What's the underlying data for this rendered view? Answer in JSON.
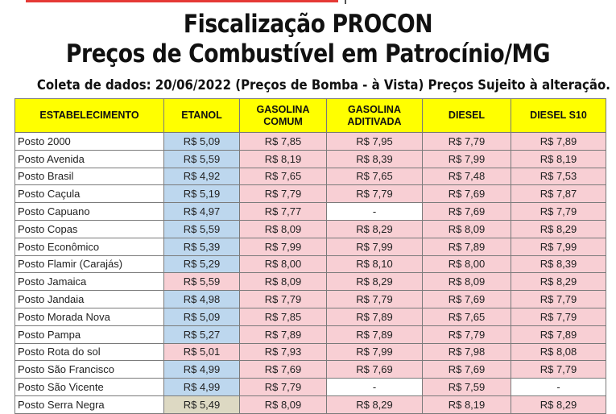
{
  "header": {
    "title_line1": "Fiscalização PROCON",
    "title_line2": "Preços de Combustível em Patrocínio/MG",
    "subtitle": "Coleta de dados: 20/06/2022 (Preços de Bomba - à Vista) Preços Sujeito à alteração."
  },
  "table": {
    "columns": [
      "ESTABELECIMENTO",
      "ETANOL",
      "GASOLINA\nCOMUM",
      "GASOLINA\nADITIVADA",
      "DIESEL",
      "DIESEL S10"
    ],
    "rows": [
      {
        "name": "Posto 2000",
        "etanol": "R$ 5,09",
        "gasolina_comum": "R$ 7,85",
        "gasolina_aditivada": "R$ 7,95",
        "diesel": "R$ 7,79",
        "diesel_s10": "R$ 7,89"
      },
      {
        "name": "Posto Avenida",
        "etanol": "R$ 5,59",
        "gasolina_comum": "R$ 8,19",
        "gasolina_aditivada": "R$ 8,39",
        "diesel": "R$ 7,99",
        "diesel_s10": "R$ 8,19"
      },
      {
        "name": "Posto Brasil",
        "etanol": "R$ 4,92",
        "gasolina_comum": "R$ 7,65",
        "gasolina_aditivada": "R$ 7,65",
        "diesel": "R$ 7,48",
        "diesel_s10": "R$ 7,53"
      },
      {
        "name": "Posto Caçula",
        "etanol": "R$ 5,19",
        "gasolina_comum": "R$ 7,79",
        "gasolina_aditivada": "R$ 7,79",
        "diesel": "R$ 7,69",
        "diesel_s10": "R$ 7,87"
      },
      {
        "name": "Posto Capuano",
        "etanol": "R$ 4,97",
        "gasolina_comum": "R$ 7,77",
        "gasolina_aditivada": "-",
        "diesel": "R$ 7,69",
        "diesel_s10": "R$ 7,79"
      },
      {
        "name": "Posto Copas",
        "etanol": "R$ 5,59",
        "gasolina_comum": "R$ 8,09",
        "gasolina_aditivada": "R$ 8,29",
        "diesel": "R$ 8,09",
        "diesel_s10": "R$ 8,29"
      },
      {
        "name": "Posto Econômico",
        "etanol": "R$ 5,39",
        "gasolina_comum": "R$ 7,99",
        "gasolina_aditivada": "R$ 7,99",
        "diesel": "R$ 7,89",
        "diesel_s10": "R$ 7,99"
      },
      {
        "name": "Posto Flamir (Carajás)",
        "etanol": "R$ 5,29",
        "gasolina_comum": "R$ 8,00",
        "gasolina_aditivada": "R$ 8,10",
        "diesel": "R$ 8,00",
        "diesel_s10": "R$ 8,39"
      },
      {
        "name": "Posto Jamaica",
        "etanol": "R$ 5,59",
        "gasolina_comum": "R$ 8,09",
        "gasolina_aditivada": "R$ 8,29",
        "diesel": "R$ 8,09",
        "diesel_s10": "R$ 8,29"
      },
      {
        "name": "Posto Jandaia",
        "etanol": "R$ 4,98",
        "gasolina_comum": "R$ 7,79",
        "gasolina_aditivada": "R$ 7,79",
        "diesel": "R$ 7,69",
        "diesel_s10": "R$ 7,79"
      },
      {
        "name": "Posto Morada Nova",
        "etanol": "R$ 5,09",
        "gasolina_comum": "R$ 7,85",
        "gasolina_aditivada": "R$ 7,89",
        "diesel": "R$ 7,65",
        "diesel_s10": "R$ 7,79"
      },
      {
        "name": "Posto Pampa",
        "etanol": "R$ 5,27",
        "gasolina_comum": "R$ 7,89",
        "gasolina_aditivada": "R$ 7,89",
        "diesel": "R$ 7,79",
        "diesel_s10": "R$ 7,89"
      },
      {
        "name": "Posto Rota do sol",
        "etanol": "R$ 5,01",
        "gasolina_comum": "R$ 7,93",
        "gasolina_aditivada": "R$ 7,99",
        "diesel": "R$ 7,98",
        "diesel_s10": "R$ 8,08"
      },
      {
        "name": "Posto São Francisco",
        "etanol": "R$ 4,99",
        "gasolina_comum": "R$ 7,69",
        "gasolina_aditivada": "R$ 7,69",
        "diesel": "R$ 7,69",
        "diesel_s10": "R$ 7,79"
      },
      {
        "name": "Posto São Vicente",
        "etanol": "R$ 4,99",
        "gasolina_comum": "R$ 7,79",
        "gasolina_aditivada": "-",
        "diesel": "R$ 7,59",
        "diesel_s10": "-"
      },
      {
        "name": "Posto Serra Negra",
        "etanol": "R$ 5,49",
        "gasolina_comum": "R$ 8,09",
        "gasolina_aditivada": "R$ 8,29",
        "diesel": "R$ 8,19",
        "diesel_s10": "R$ 8,29"
      }
    ],
    "cell_colors": {
      "blue": "#bdd7ee",
      "pink": "#f8cfd4",
      "white": "#ffffff",
      "tan": "#ddd9c3",
      "header": "#ffff00"
    },
    "row_styles": [
      [
        "blue",
        "pink",
        "pink",
        "pink",
        "pink"
      ],
      [
        "blue",
        "pink",
        "pink",
        "pink",
        "pink"
      ],
      [
        "blue",
        "pink",
        "pink",
        "pink",
        "pink"
      ],
      [
        "blue",
        "pink",
        "pink",
        "pink",
        "pink"
      ],
      [
        "blue",
        "pink",
        "white",
        "pink",
        "pink"
      ],
      [
        "blue",
        "pink",
        "pink",
        "pink",
        "pink"
      ],
      [
        "blue",
        "pink",
        "pink",
        "pink",
        "pink"
      ],
      [
        "blue",
        "pink",
        "pink",
        "pink",
        "pink"
      ],
      [
        "pink",
        "pink",
        "pink",
        "pink",
        "pink"
      ],
      [
        "blue",
        "pink",
        "pink",
        "pink",
        "pink"
      ],
      [
        "blue",
        "pink",
        "pink",
        "pink",
        "pink"
      ],
      [
        "blue",
        "pink",
        "pink",
        "pink",
        "pink"
      ],
      [
        "pink",
        "pink",
        "pink",
        "pink",
        "pink"
      ],
      [
        "blue",
        "pink",
        "pink",
        "pink",
        "pink"
      ],
      [
        "blue",
        "pink",
        "white",
        "pink",
        "white"
      ],
      [
        "tan",
        "pink",
        "pink",
        "pink",
        "pink"
      ]
    ]
  }
}
